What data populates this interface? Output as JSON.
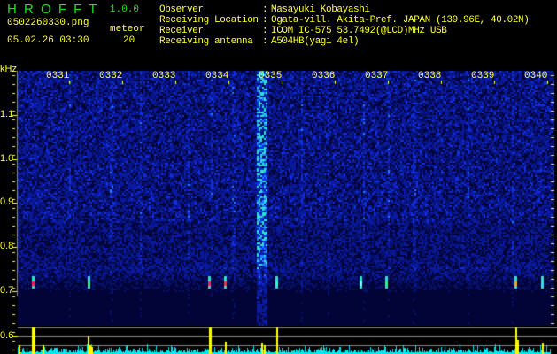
{
  "app": {
    "title": "H R O F F T",
    "version": "1.0.0"
  },
  "file": {
    "name": "0502260330.png",
    "datetime": "05.02.26 03:30"
  },
  "meteor": {
    "label": "meteor",
    "count": "20"
  },
  "info": {
    "rows": [
      {
        "label": "Observer",
        "value": "Masayuki Kobayashi"
      },
      {
        "label": "Receiving Location",
        "value": "Ogata-vill. Akita-Pref. JAPAN (139.96E, 40.02N)"
      },
      {
        "label": "Receiver",
        "value": "ICOM IC-575 53.7492(@LCD)MHz USB"
      },
      {
        "label": "Receiving antenna",
        "value": "A504HB(yagi 4el)"
      }
    ]
  },
  "axis": {
    "y_unit": "kHz",
    "y_ticks": [
      "1.1",
      "1.0",
      "0.9",
      "0.8",
      "0.7",
      "0.6"
    ],
    "time_labels": [
      "0331",
      "0332",
      "0333",
      "0334",
      "0335",
      "0336",
      "0337",
      "0338",
      "0339",
      "0340"
    ]
  },
  "colors": {
    "text": "#ffff33",
    "title": "#22dd22",
    "background": "#000000",
    "spectrogram_base": "#0a0a60",
    "bars_cyan": "#00e8f0",
    "bars_yellow": "#ffff00"
  }
}
